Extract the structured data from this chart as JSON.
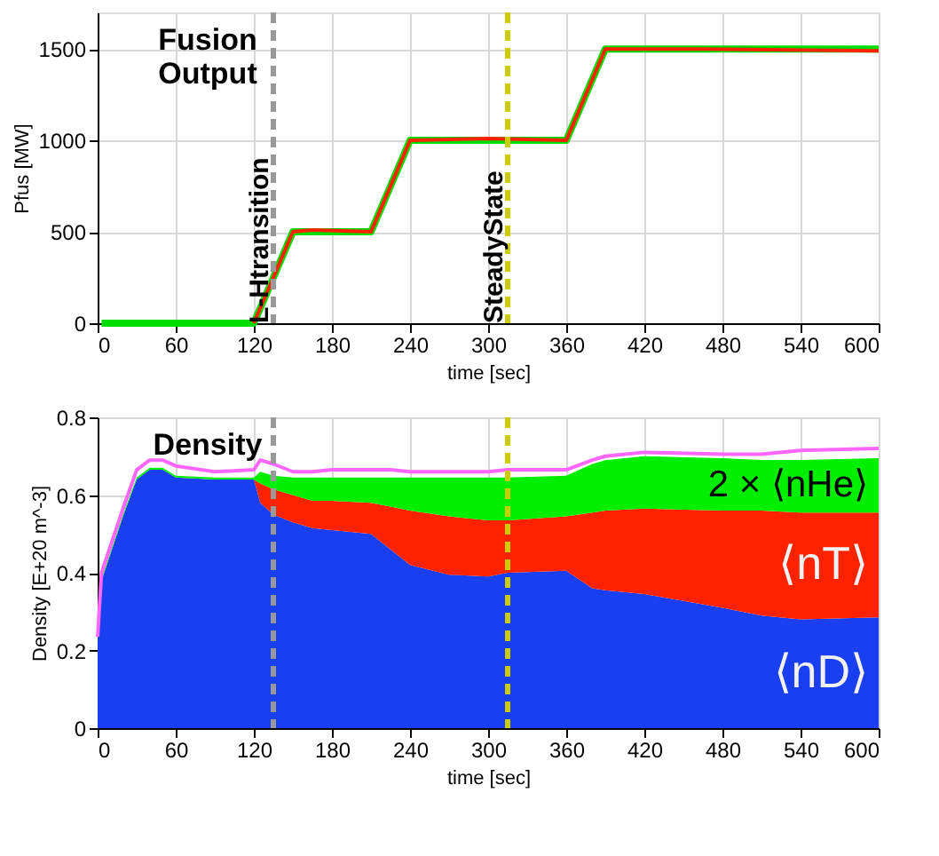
{
  "chart_data": [
    {
      "type": "line",
      "title": "Fusion Output",
      "xlabel": "time [sec]",
      "ylabel": "Pfus [MW]",
      "xlim": [
        0,
        600
      ],
      "xticks": [
        0,
        60,
        120,
        180,
        240,
        300,
        360,
        420,
        480,
        540,
        600
      ],
      "ylim": [
        0,
        1700
      ],
      "yticks": [
        0,
        500,
        1000,
        1500
      ],
      "grid": true,
      "legend": false,
      "series": [
        {
          "color": "#00dd00",
          "x": [
            3,
            120,
            150,
            210,
            240,
            360,
            390,
            600
          ],
          "values": [
            0,
            0,
            500,
            500,
            1000,
            1000,
            1500,
            1500
          ]
        },
        {
          "color": "#ff2200",
          "x": [
            120,
            150,
            165,
            210,
            240,
            300,
            360,
            390,
            465,
            600
          ],
          "values": [
            0,
            500,
            510,
            500,
            1000,
            1010,
            1000,
            1500,
            1500,
            1490
          ]
        }
      ],
      "ref_lines": [
        {
          "axis": "x",
          "value": 135,
          "label": "L-Htransition",
          "color": "#999999",
          "line_style": "dashed"
        },
        {
          "axis": "x",
          "value": 315,
          "label": "SteadyState",
          "color": "#cccc00",
          "line_style": "dashed"
        }
      ]
    },
    {
      "type": "area",
      "stacked": true,
      "title": "Density",
      "xlabel": "time [sec]",
      "ylabel": "Density [E+20 m^-3]",
      "xlim": [
        0,
        600
      ],
      "xticks": [
        0,
        60,
        120,
        180,
        240,
        300,
        360,
        420,
        480,
        540,
        600
      ],
      "ylim": [
        0,
        0.8
      ],
      "yticks": [
        0,
        0.2,
        0.4,
        0.6,
        0.8
      ],
      "grid": true,
      "legend": false,
      "x": [
        0,
        3,
        10,
        20,
        30,
        40,
        50,
        60,
        90,
        120,
        125,
        135,
        150,
        165,
        180,
        210,
        225,
        240,
        270,
        300,
        315,
        360,
        380,
        390,
        420,
        480,
        510,
        540,
        600
      ],
      "series": [
        {
          "name": "⟨nD⟩",
          "color": "#1a3ff0",
          "values": [
            0.22,
            0.38,
            0.45,
            0.55,
            0.64,
            0.665,
            0.665,
            0.645,
            0.64,
            0.64,
            0.58,
            0.55,
            0.53,
            0.515,
            0.51,
            0.5,
            0.46,
            0.42,
            0.395,
            0.39,
            0.4,
            0.405,
            0.36,
            0.355,
            0.345,
            0.31,
            0.29,
            0.28,
            0.285
          ]
        },
        {
          "name": "⟨nT⟩",
          "color": "#ff2200",
          "values": [
            0,
            0,
            0,
            0,
            0,
            0,
            0,
            0,
            0,
            0,
            0.05,
            0.065,
            0.07,
            0.07,
            0.075,
            0.08,
            0.11,
            0.14,
            0.15,
            0.145,
            0.135,
            0.14,
            0.195,
            0.205,
            0.22,
            0.25,
            0.27,
            0.275,
            0.27
          ]
        },
        {
          "name": "2 × ⟨nHe⟩",
          "color": "#00ee00",
          "values": [
            0.005,
            0.005,
            0.005,
            0.005,
            0.005,
            0.005,
            0.005,
            0.005,
            0.005,
            0.005,
            0.03,
            0.035,
            0.045,
            0.06,
            0.06,
            0.065,
            0.075,
            0.085,
            0.1,
            0.11,
            0.11,
            0.105,
            0.125,
            0.13,
            0.135,
            0.135,
            0.13,
            0.135,
            0.14
          ]
        },
        {
          "type": "line",
          "color": "#ff66ff",
          "values": [
            0.235,
            0.4,
            0.47,
            0.57,
            0.665,
            0.69,
            0.69,
            0.675,
            0.66,
            0.665,
            0.69,
            0.68,
            0.66,
            0.66,
            0.665,
            0.665,
            0.665,
            0.66,
            0.66,
            0.66,
            0.665,
            0.665,
            0.69,
            0.7,
            0.71,
            0.705,
            0.705,
            0.715,
            0.72
          ]
        }
      ],
      "ref_lines": [
        {
          "axis": "x",
          "value": 135,
          "color": "#999999",
          "line_style": "dashed"
        },
        {
          "axis": "x",
          "value": 315,
          "color": "#cccc00",
          "line_style": "dashed"
        }
      ]
    }
  ]
}
